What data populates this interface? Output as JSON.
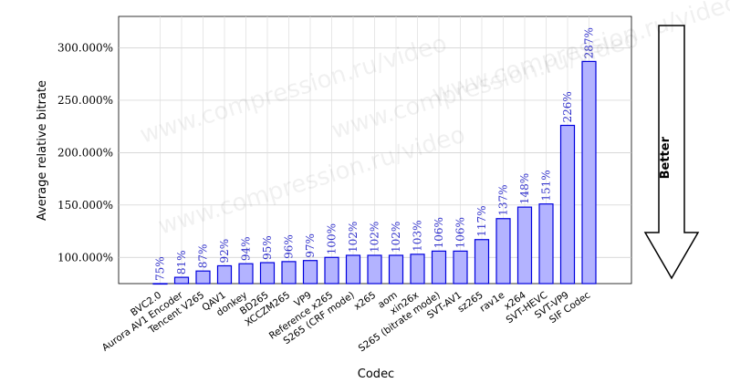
{
  "chart_data": {
    "type": "bar",
    "xlabel": "Codec",
    "ylabel": "Average relative bitrate",
    "ylim": [
      75,
      330
    ],
    "yticks": [
      100,
      150,
      200,
      250,
      300
    ],
    "ytick_labels": [
      "100.000%",
      "150.000%",
      "200.000%",
      "250.000%",
      "300.000%"
    ],
    "grid": true,
    "bar_color": "#b3b3ff",
    "bar_edge": "#0000dd",
    "label_color": "#3333cc",
    "categories": [
      "BVC2.0",
      "Aurora AV1 Encoder",
      "Tencent V265",
      "QAV1",
      "donkey",
      "BD265",
      "XCCZM265",
      "VP9",
      "Reference x265",
      "S265 (CRF mode)",
      "x265",
      "aom",
      "xin26x",
      "S265 (bitrate mode)",
      "SVT-AV1",
      "sz265",
      "rav1e",
      "x264",
      "SVT-HEVC",
      "SVT-VP9",
      "SIF Codec"
    ],
    "values": [
      75,
      81,
      87,
      92,
      94,
      95,
      96,
      97,
      100,
      102,
      102,
      102,
      103,
      106,
      106,
      117,
      137,
      148,
      151,
      226,
      287
    ],
    "data_labels": [
      "75%",
      "81%",
      "87%",
      "92%",
      "94%",
      "95%",
      "96%",
      "97%",
      "100%",
      "102%",
      "102%",
      "102%",
      "103%",
      "106%",
      "106%",
      "117%",
      "137%",
      "148%",
      "151%",
      "226%",
      "287%"
    ]
  },
  "watermark": "www.compression.ru/video",
  "arrow": {
    "label": "Better"
  }
}
